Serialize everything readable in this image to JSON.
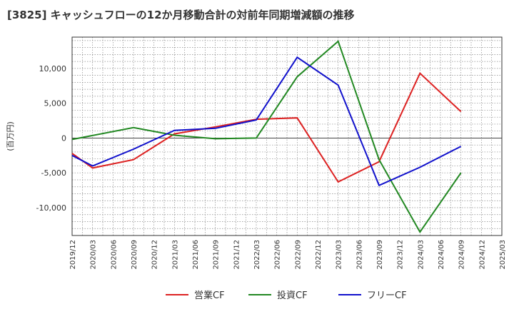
{
  "chart_data": {
    "type": "line",
    "title": "[3825]  キャッシュフローの12か月移動合計の対前年同期増減額の推移",
    "ylabel": "(百万円)",
    "xlabel": "",
    "ylim": [
      -14000,
      14500
    ],
    "yticks": [
      10000,
      5000,
      0,
      -5000,
      -10000
    ],
    "ytick_labels": [
      "10,000",
      "5,000",
      "0",
      "-5,000",
      "-10,000"
    ],
    "x_categories": [
      "2019/12",
      "2020/03",
      "2020/06",
      "2020/09",
      "2020/12",
      "2021/03",
      "2021/06",
      "2021/09",
      "2021/12",
      "2022/03",
      "2022/06",
      "2022/09",
      "2022/12",
      "2023/03",
      "2023/06",
      "2023/09",
      "2023/12",
      "2024/03",
      "2024/06",
      "2024/09",
      "2024/12",
      "2025/03"
    ],
    "grid": true,
    "legend_position": "bottom",
    "series": [
      {
        "name": "営業CF",
        "color": "#dd2222",
        "points": [
          [
            "2019/12",
            -2200
          ],
          [
            "2020/03",
            -4300
          ],
          [
            "2020/09",
            -3100
          ],
          [
            "2021/03",
            600
          ],
          [
            "2021/09",
            1600
          ],
          [
            "2022/03",
            2700
          ],
          [
            "2022/09",
            2900
          ],
          [
            "2023/03",
            -6300
          ],
          [
            "2023/09",
            -3400
          ],
          [
            "2024/03",
            9300
          ],
          [
            "2024/09",
            3800
          ]
        ]
      },
      {
        "name": "投資CF",
        "color": "#228822",
        "points": [
          [
            "2019/12",
            -200
          ],
          [
            "2020/09",
            1500
          ],
          [
            "2021/03",
            400
          ],
          [
            "2021/09",
            -100
          ],
          [
            "2022/03",
            0
          ],
          [
            "2022/09",
            8800
          ],
          [
            "2023/03",
            13900
          ],
          [
            "2023/09",
            -3100
          ],
          [
            "2024/03",
            -13500
          ],
          [
            "2024/09",
            -5000
          ]
        ]
      },
      {
        "name": "フリーCF",
        "color": "#1111cc",
        "points": [
          [
            "2019/12",
            -2500
          ],
          [
            "2020/03",
            -4000
          ],
          [
            "2020/09",
            -1600
          ],
          [
            "2021/03",
            1100
          ],
          [
            "2021/09",
            1400
          ],
          [
            "2022/03",
            2600
          ],
          [
            "2022/09",
            11600
          ],
          [
            "2023/03",
            7600
          ],
          [
            "2023/09",
            -6800
          ],
          [
            "2024/03",
            -4200
          ],
          [
            "2024/09",
            -1200
          ]
        ]
      }
    ]
  }
}
